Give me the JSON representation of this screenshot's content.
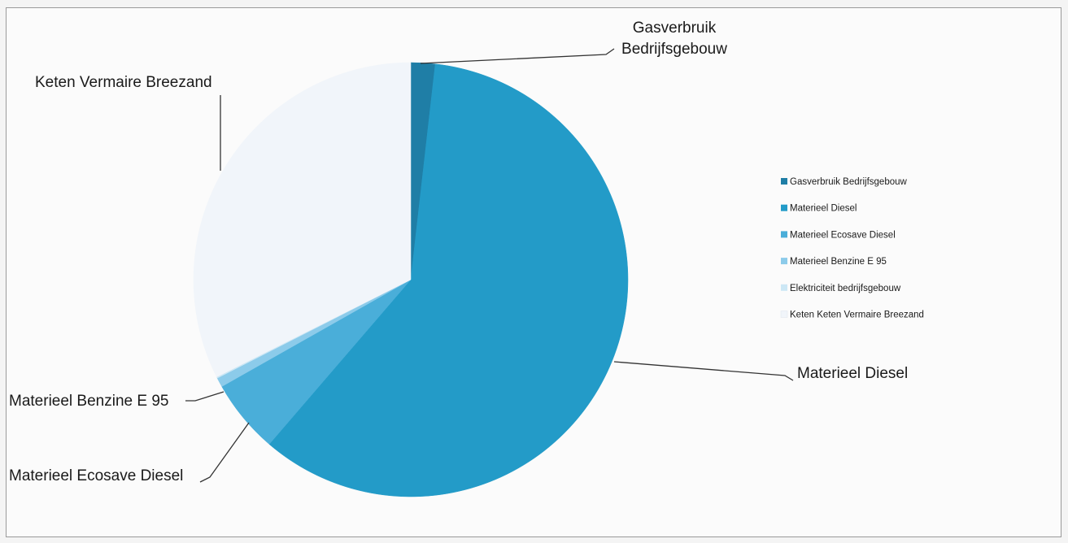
{
  "chart_data": {
    "type": "pie",
    "start_angle_deg": 0,
    "direction": "clockwise",
    "slices": [
      {
        "label": "Gasverbruik Bedrijfsgebouw",
        "value": 1.8,
        "color": "#1f7ea6"
      },
      {
        "label": "Materieel Diesel",
        "value": 59.5,
        "color": "#239bc8"
      },
      {
        "label": "Materieel Ecosave Diesel",
        "value": 5.5,
        "color": "#4aaed9"
      },
      {
        "label": "Materieel Benzine E 95",
        "value": 0.7,
        "color": "#8ccbea"
      },
      {
        "label": "Elektriciteit bedrijfsgebouw",
        "value": 0.1,
        "color": "#cce7f5"
      },
      {
        "label": "Keten Keten Vermaire Breezand",
        "value": 32.4,
        "color": "#f1f5fa"
      }
    ],
    "callouts": {
      "gas_line1": "Gasverbruik",
      "gas_line2": "Bedrijfsgebouw",
      "keten": "Keten Vermaire Breezand",
      "diesel": "Materieel Diesel",
      "benzine": "Materieel Benzine E 95",
      "ecosave": "Materieel Ecosave Diesel"
    },
    "legend_position": "right"
  }
}
